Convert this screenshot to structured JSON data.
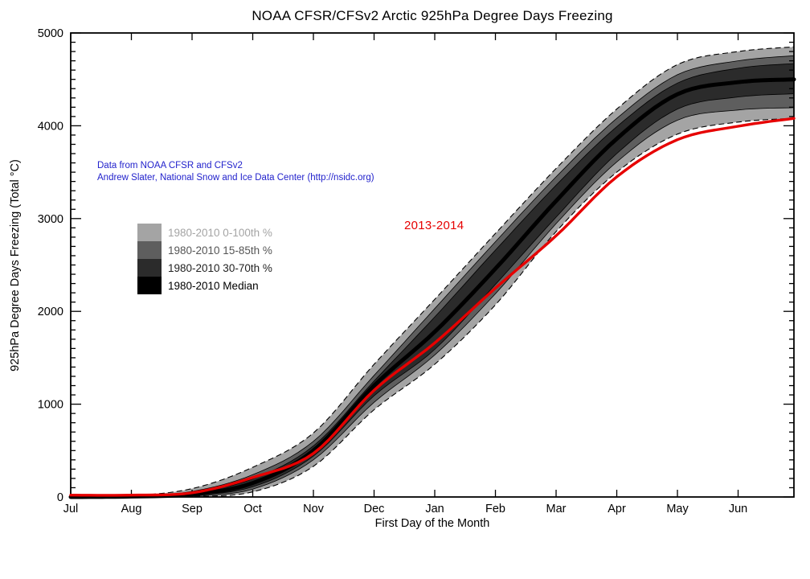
{
  "title": "NOAA CFSR/CFSv2 Arctic 925hPa Degree Days Freezing",
  "annotation": {
    "line1": "Data from NOAA CFSR and CFSv2",
    "line2": "Andrew Slater, National Snow and Ice Data Center (http://nsidc.org)",
    "color": "#2222cc"
  },
  "series_label": {
    "text": "2013-2014",
    "color": "#e60000"
  },
  "legend": {
    "items": [
      {
        "label": "1980-2010 0-100th %",
        "color": "#a4a4a4",
        "text_color": "#a4a4a4"
      },
      {
        "label": "1980-2010 15-85th %",
        "color": "#5e5e5e",
        "text_color": "#555555"
      },
      {
        "label": "1980-2010 30-70th %",
        "color": "#2b2b2b",
        "text_color": "#222222"
      },
      {
        "label": "1980-2010 Median",
        "color": "#000000",
        "text_color": "#000000"
      }
    ]
  },
  "axes": {
    "x_label": "First Day of the Month",
    "y_label": "925hPa Degree Days Freezing (Total °C)",
    "x_ticks": [
      "Jul",
      "Aug",
      "Sep",
      "Oct",
      "Nov",
      "Dec",
      "Jan",
      "Feb",
      "Mar",
      "Apr",
      "May",
      "Jun"
    ],
    "y_ticks": [
      "0",
      "1000",
      "2000",
      "3000",
      "4000",
      "5000"
    ]
  },
  "chart_data": {
    "type": "line",
    "title": "NOAA CFSR/CFSv2 Arctic 925hPa Degree Days Freezing",
    "xlabel": "First Day of the Month",
    "ylabel": "925hPa Degree Days Freezing (Total °C)",
    "x_categories": [
      "Jul",
      "Aug",
      "Sep",
      "Oct",
      "Nov",
      "Dec",
      "Jan",
      "Feb",
      "Mar",
      "Apr",
      "May",
      "Jun"
    ],
    "x": [
      0,
      1,
      2,
      3,
      4,
      5,
      6,
      7,
      8,
      9,
      10,
      11,
      11.92
    ],
    "x_domain": [
      0,
      11.92
    ],
    "ylim": [
      0,
      5000
    ],
    "y_major_step": 1000,
    "y_minor_step": 100,
    "grid": false,
    "legend_position": "upper-left-inside",
    "bands": [
      {
        "name": "1980-2010 0-100th %",
        "color": "#a4a4a4",
        "edge": "dashed",
        "lower": [
          0,
          0,
          5,
          55,
          330,
          940,
          1430,
          2070,
          2860,
          3500,
          3910,
          4040,
          4080
        ],
        "upper": [
          5,
          15,
          90,
          320,
          690,
          1430,
          2130,
          2840,
          3540,
          4180,
          4660,
          4800,
          4850
        ]
      },
      {
        "name": "1980-2010 15-85th %",
        "color": "#5e5e5e",
        "edge": "solid",
        "lower": [
          0,
          1,
          10,
          85,
          400,
          1020,
          1530,
          2190,
          2945,
          3610,
          4060,
          4170,
          4195
        ],
        "upper": [
          2,
          10,
          60,
          240,
          600,
          1310,
          2030,
          2750,
          3450,
          4080,
          4550,
          4700,
          4755
        ]
      },
      {
        "name": "1980-2010 30-70th %",
        "color": "#2b2b2b",
        "edge": "solid",
        "lower": [
          0,
          3,
          18,
          110,
          440,
          1090,
          1590,
          2290,
          3015,
          3700,
          4180,
          4310,
          4345
        ],
        "upper": [
          1,
          8,
          45,
          195,
          550,
          1250,
          1940,
          2660,
          3360,
          3990,
          4460,
          4620,
          4670
        ]
      }
    ],
    "lines": [
      {
        "name": "1980-2010 Median",
        "color": "#000000",
        "width": 5,
        "values": [
          0,
          5,
          30,
          150,
          500,
          1200,
          1780,
          2460,
          3190,
          3860,
          4340,
          4470,
          4500
        ]
      },
      {
        "name": "2013-2014",
        "color": "#e60000",
        "width": 3.4,
        "values": [
          20,
          20,
          45,
          210,
          470,
          1150,
          1660,
          2250,
          2815,
          3450,
          3850,
          3995,
          4080
        ]
      }
    ]
  }
}
